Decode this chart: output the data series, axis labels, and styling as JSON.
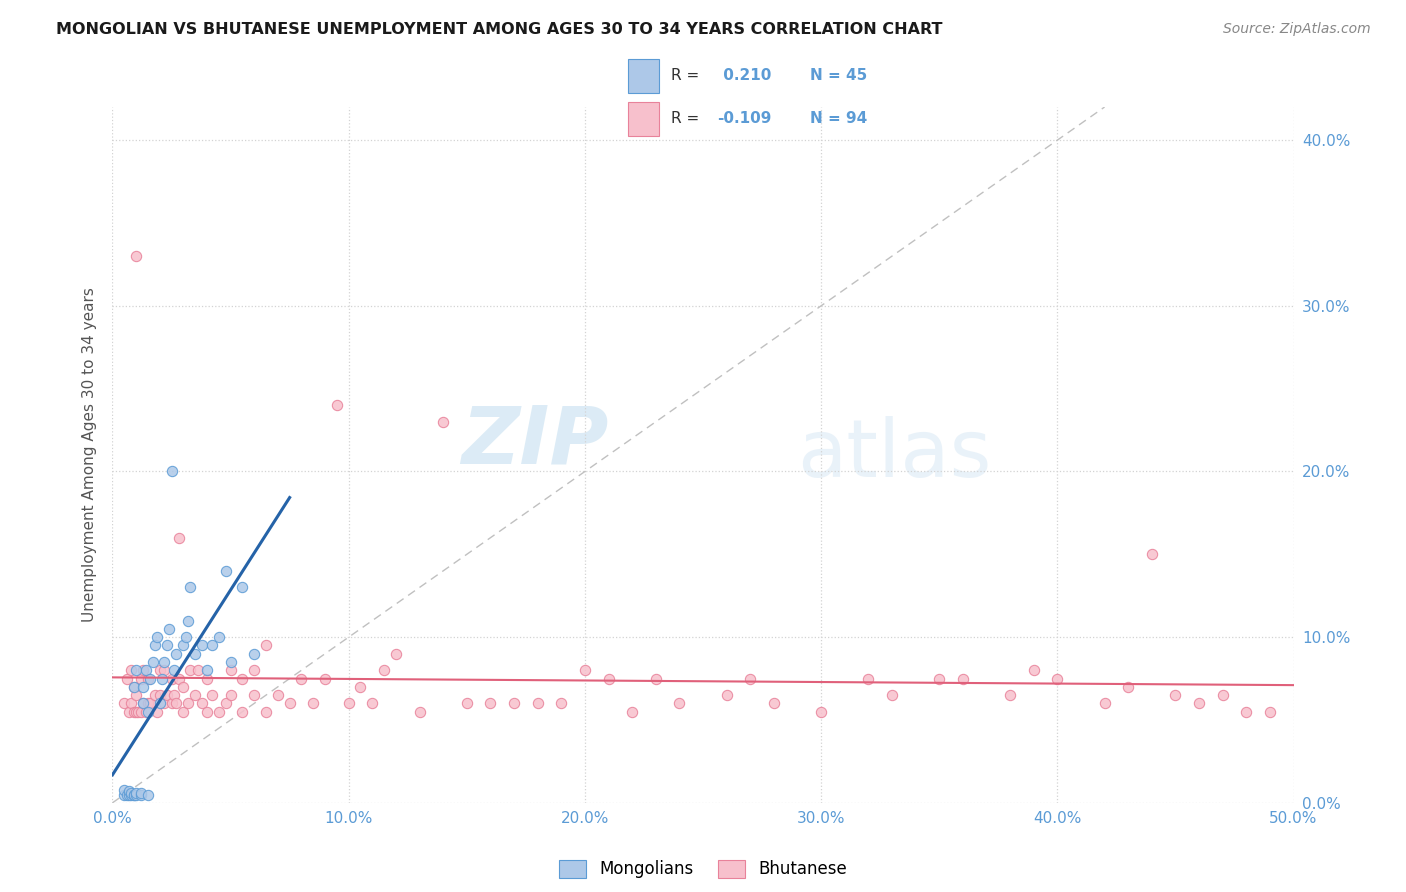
{
  "title": "MONGOLIAN VS BHUTANESE UNEMPLOYMENT AMONG AGES 30 TO 34 YEARS CORRELATION CHART",
  "source": "Source: ZipAtlas.com",
  "ylabel": "Unemployment Among Ages 30 to 34 years",
  "xlim": [
    0.0,
    0.5
  ],
  "ylim": [
    0.0,
    0.42
  ],
  "x_ticks": [
    0.0,
    0.1,
    0.2,
    0.3,
    0.4,
    0.5
  ],
  "x_tick_labels": [
    "0.0%",
    "10.0%",
    "20.0%",
    "30.0%",
    "40.0%",
    "50.0%"
  ],
  "y_ticks": [
    0.0,
    0.1,
    0.2,
    0.3,
    0.4
  ],
  "y_tick_labels": [
    "0.0%",
    "10.0%",
    "20.0%",
    "30.0%",
    "40.0%"
  ],
  "mongolian_fill_color": "#adc8e8",
  "mongolian_edge_color": "#5b9bd5",
  "bhutanese_fill_color": "#f7c0cc",
  "bhutanese_edge_color": "#e8829a",
  "mongolian_line_color": "#2563a8",
  "bhutanese_line_color": "#e0607a",
  "diagonal_color": "#c0c0c0",
  "R_mongolian": 0.21,
  "N_mongolian": 45,
  "R_bhutanese": -0.109,
  "N_bhutanese": 94,
  "mongolian_scatter_x": [
    0.005,
    0.005,
    0.006,
    0.007,
    0.007,
    0.008,
    0.008,
    0.009,
    0.009,
    0.009,
    0.01,
    0.01,
    0.01,
    0.012,
    0.012,
    0.013,
    0.013,
    0.014,
    0.015,
    0.015,
    0.016,
    0.017,
    0.018,
    0.019,
    0.02,
    0.021,
    0.022,
    0.023,
    0.024,
    0.025,
    0.026,
    0.027,
    0.03,
    0.031,
    0.032,
    0.033,
    0.035,
    0.038,
    0.04,
    0.042,
    0.045,
    0.048,
    0.05,
    0.055,
    0.06
  ],
  "mongolian_scatter_y": [
    0.005,
    0.008,
    0.005,
    0.005,
    0.007,
    0.005,
    0.006,
    0.005,
    0.005,
    0.07,
    0.005,
    0.006,
    0.08,
    0.005,
    0.006,
    0.06,
    0.07,
    0.08,
    0.005,
    0.055,
    0.075,
    0.085,
    0.095,
    0.1,
    0.06,
    0.075,
    0.085,
    0.095,
    0.105,
    0.2,
    0.08,
    0.09,
    0.095,
    0.1,
    0.11,
    0.13,
    0.09,
    0.095,
    0.08,
    0.095,
    0.1,
    0.14,
    0.085,
    0.13,
    0.09
  ],
  "bhutanese_scatter_x": [
    0.005,
    0.006,
    0.007,
    0.008,
    0.008,
    0.009,
    0.009,
    0.01,
    0.01,
    0.01,
    0.011,
    0.012,
    0.012,
    0.013,
    0.013,
    0.014,
    0.015,
    0.015,
    0.016,
    0.018,
    0.019,
    0.02,
    0.02,
    0.022,
    0.022,
    0.023,
    0.025,
    0.025,
    0.026,
    0.027,
    0.028,
    0.028,
    0.03,
    0.03,
    0.032,
    0.033,
    0.035,
    0.036,
    0.038,
    0.04,
    0.04,
    0.042,
    0.045,
    0.048,
    0.05,
    0.05,
    0.055,
    0.055,
    0.06,
    0.06,
    0.065,
    0.065,
    0.07,
    0.075,
    0.08,
    0.085,
    0.09,
    0.095,
    0.1,
    0.105,
    0.11,
    0.115,
    0.12,
    0.13,
    0.14,
    0.15,
    0.16,
    0.17,
    0.18,
    0.19,
    0.2,
    0.21,
    0.22,
    0.23,
    0.24,
    0.26,
    0.27,
    0.28,
    0.3,
    0.32,
    0.33,
    0.35,
    0.36,
    0.38,
    0.39,
    0.4,
    0.42,
    0.43,
    0.44,
    0.45,
    0.46,
    0.47,
    0.48,
    0.49
  ],
  "bhutanese_scatter_y": [
    0.06,
    0.075,
    0.055,
    0.06,
    0.08,
    0.055,
    0.07,
    0.055,
    0.065,
    0.33,
    0.055,
    0.055,
    0.075,
    0.06,
    0.08,
    0.055,
    0.06,
    0.075,
    0.06,
    0.065,
    0.055,
    0.065,
    0.08,
    0.06,
    0.08,
    0.065,
    0.06,
    0.075,
    0.065,
    0.06,
    0.075,
    0.16,
    0.055,
    0.07,
    0.06,
    0.08,
    0.065,
    0.08,
    0.06,
    0.055,
    0.075,
    0.065,
    0.055,
    0.06,
    0.065,
    0.08,
    0.055,
    0.075,
    0.065,
    0.08,
    0.055,
    0.095,
    0.065,
    0.06,
    0.075,
    0.06,
    0.075,
    0.24,
    0.06,
    0.07,
    0.06,
    0.08,
    0.09,
    0.055,
    0.23,
    0.06,
    0.06,
    0.06,
    0.06,
    0.06,
    0.08,
    0.075,
    0.055,
    0.075,
    0.06,
    0.065,
    0.075,
    0.06,
    0.055,
    0.075,
    0.065,
    0.075,
    0.075,
    0.065,
    0.08,
    0.075,
    0.06,
    0.07,
    0.15,
    0.065,
    0.06,
    0.065,
    0.055,
    0.055
  ],
  "watermark_zip": "ZIP",
  "watermark_atlas": "atlas",
  "background_color": "#ffffff",
  "grid_color": "#d3d3d3",
  "title_color": "#1a1a1a",
  "source_color": "#888888",
  "axis_label_color": "#555555",
  "tick_color": "#5b9bd5",
  "legend_text_color_dark": "#333333",
  "legend_value_color": "#5b9bd5"
}
